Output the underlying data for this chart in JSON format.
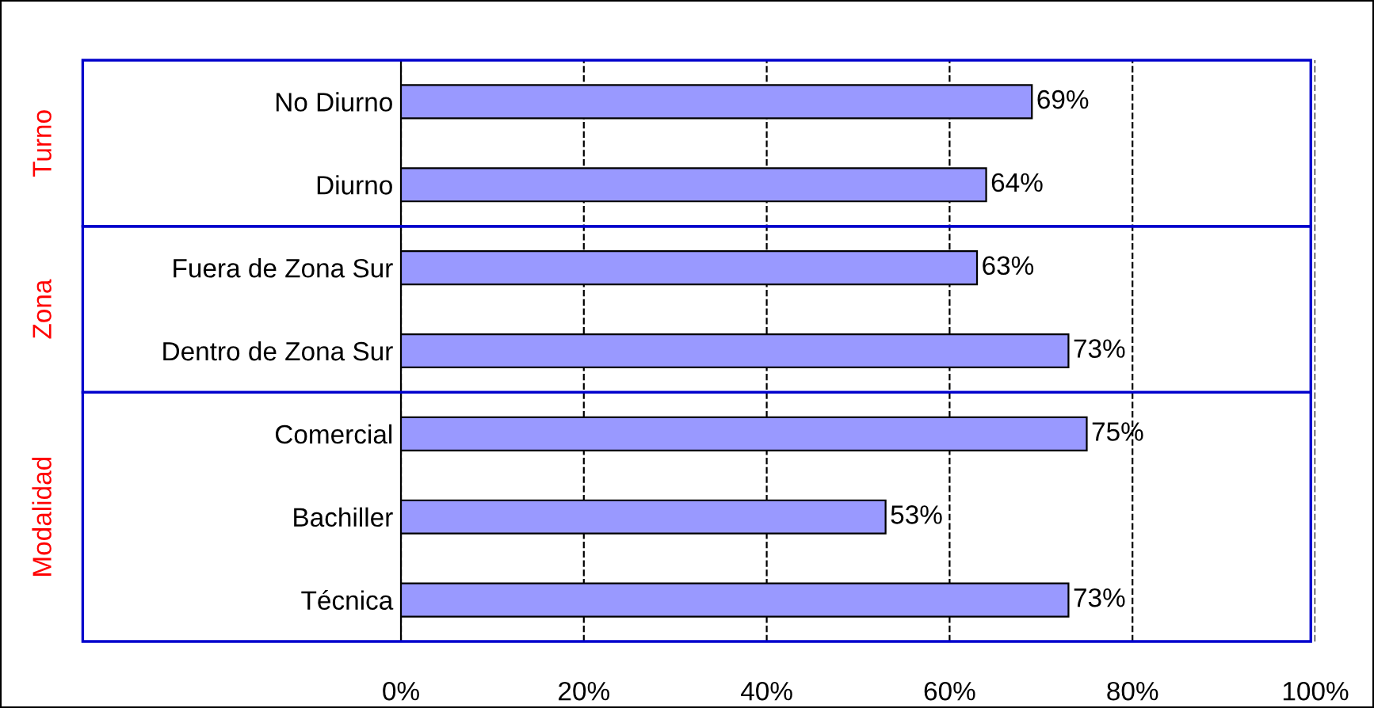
{
  "chart_data": {
    "type": "bar",
    "orientation": "horizontal",
    "categories": [
      "No Diurno",
      "Diurno",
      "Fuera de Zona Sur",
      "Dentro de Zona Sur",
      "Comercial",
      "Bachiller",
      "Técnica"
    ],
    "values": [
      69,
      64,
      63,
      73,
      75,
      53,
      73
    ],
    "value_labels": [
      "69%",
      "64%",
      "63%",
      "73%",
      "75%",
      "53%",
      "73%"
    ],
    "color": "#9999ff",
    "xlim": [
      0,
      100
    ],
    "xticks": [
      {
        "value": 0,
        "label": "0%"
      },
      {
        "value": 20,
        "label": "20%"
      },
      {
        "value": 40,
        "label": "40%"
      },
      {
        "value": 60,
        "label": "60%"
      },
      {
        "value": 80,
        "label": "80%"
      },
      {
        "value": 100,
        "label": "100%"
      }
    ],
    "grid": "x",
    "line_style": "dashed",
    "annotations": [
      "Turno",
      "Zona",
      "Modalidad"
    ]
  }
}
